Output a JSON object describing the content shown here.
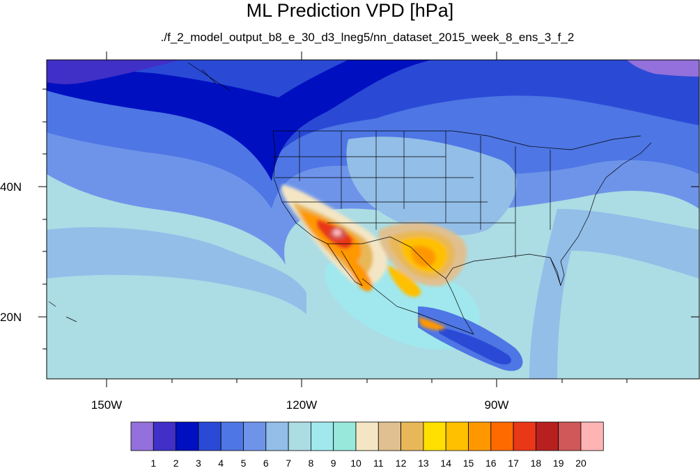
{
  "title": "ML Prediction VPD [hPa]",
  "subtitle": "./f_2_model_output_b8_e_30_d3_lneg5/nn_dataset_2015_week_8_ens_3_f_2",
  "lon_labels": [
    "150W",
    "120W",
    "90W"
  ],
  "lat_labels": [
    "40N",
    "20N"
  ],
  "colorbar": {
    "labels": [
      "1",
      "2",
      "3",
      "4",
      "5",
      "6",
      "7",
      "8",
      "9",
      "10",
      "11",
      "12",
      "13",
      "14",
      "15",
      "16",
      "17",
      "18",
      "19",
      "20"
    ],
    "colors": [
      "#9370db",
      "#4030c8",
      "#0010c0",
      "#2a4ad6",
      "#4e76e4",
      "#6e94ea",
      "#92bee8",
      "#acdce4",
      "#a0e8ee",
      "#98e8dc",
      "#f4e6c4",
      "#e0c090",
      "#e8b858",
      "#ffe000",
      "#ffc000",
      "#ff9800",
      "#ff6a00",
      "#e83818",
      "#b82020",
      "#d05858",
      "#ffb4b4"
    ]
  },
  "map": {
    "lon_range": [
      -160,
      -62
    ],
    "lat_range": [
      10,
      59
    ],
    "features": "U.S. state boundaries, Mexico, Canada coastline, Hawaii"
  }
}
